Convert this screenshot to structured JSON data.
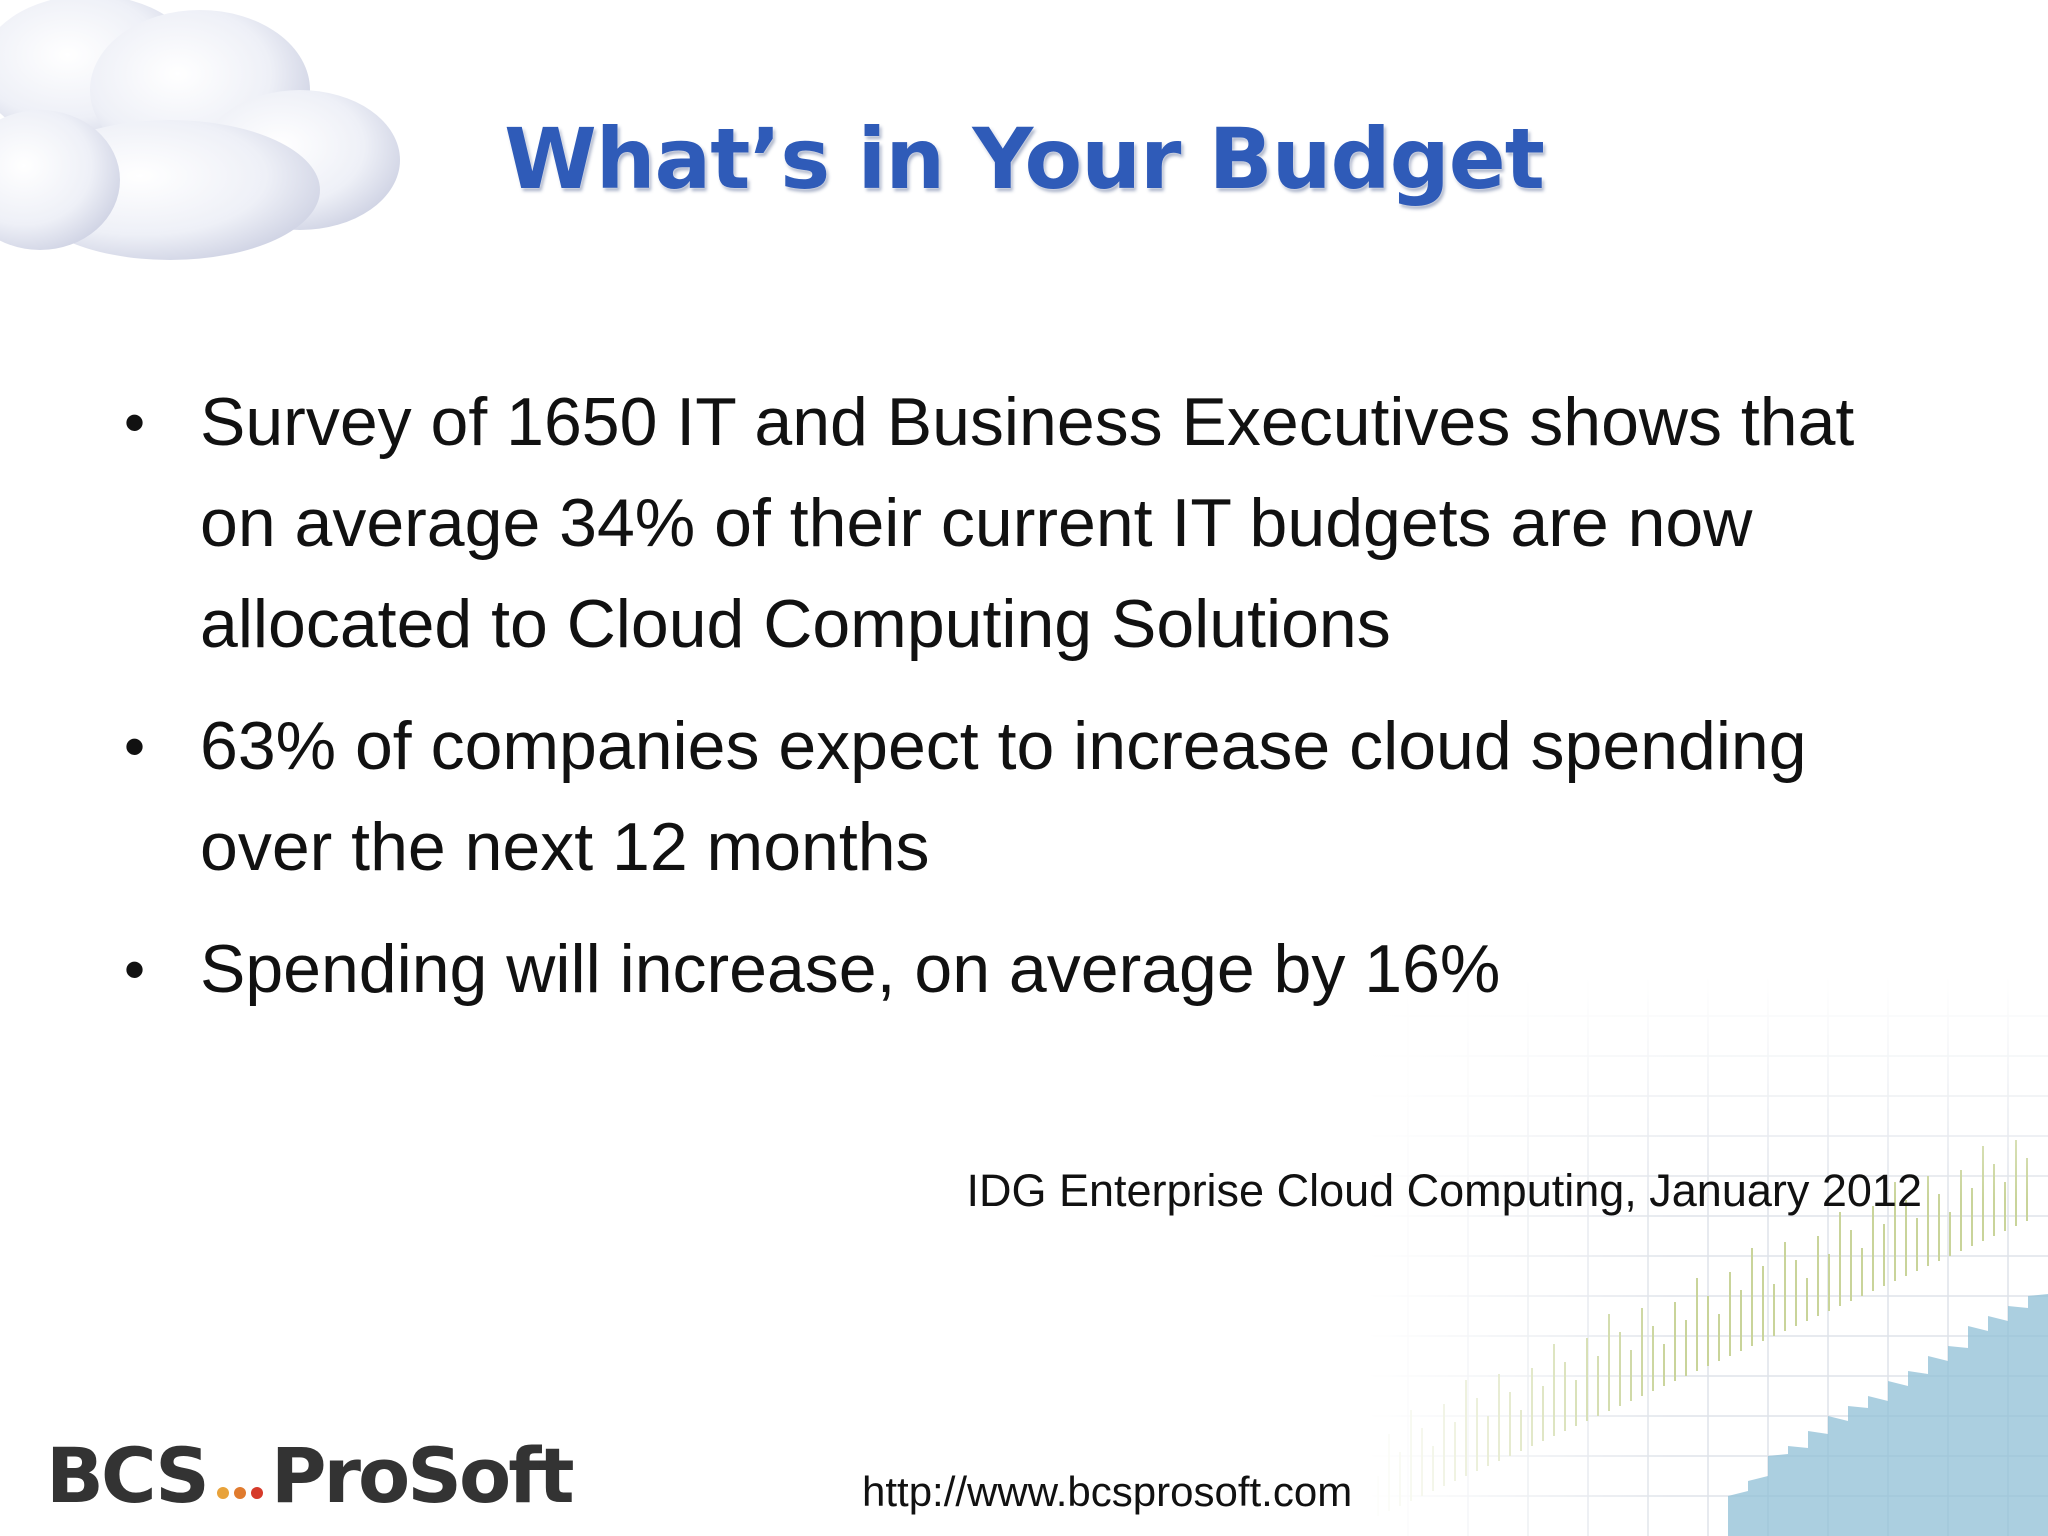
{
  "slide": {
    "title": "What’s in Your Budget",
    "bullets": [
      "Survey of 1650 IT and Business Executives shows that on average 34% of their current IT budgets are now allocated to Cloud Computing Solutions",
      "63% of companies expect to increase cloud spending over the next 12 months",
      "Spending will increase, on average by 16%"
    ],
    "bullet_symbol": "•",
    "citation": "IDG Enterprise Cloud Computing, January 2012",
    "footer_url": "http://www.bcsprosoft.com",
    "logo": {
      "left": "BCS",
      "right": "ProSoft",
      "dot_colors": [
        "#e8a23a",
        "#e07b2e",
        "#d63a2a"
      ]
    }
  },
  "colors": {
    "title": "#2f5bb8",
    "text": "#111111",
    "logo": "#333333"
  }
}
